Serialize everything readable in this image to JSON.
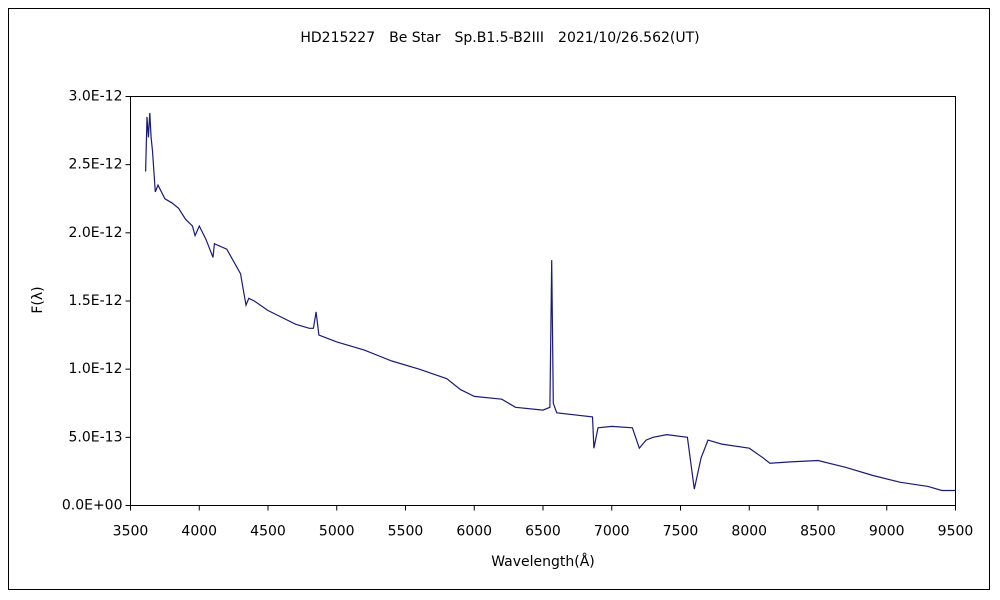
{
  "chart_data": {
    "type": "line",
    "title": "HD215227　Be Star　Sp.B1.5-B2III　2021/10/26.562(UT)",
    "xlabel": "Wavelength(Å)",
    "ylabel": "F(λ)",
    "color": "#1a1a78",
    "x": [
      3610,
      3620,
      3630,
      3640,
      3650,
      3660,
      3680,
      3700,
      3750,
      3800,
      3850,
      3900,
      3950,
      3970,
      4000,
      4050,
      4100,
      4110,
      4200,
      4300,
      4340,
      4360,
      4400,
      4500,
      4600,
      4700,
      4800,
      4830,
      4850,
      4870,
      5000,
      5200,
      5400,
      5600,
      5800,
      5900,
      6000,
      6200,
      6300,
      6500,
      6550,
      6563,
      6575,
      6600,
      6860,
      6870,
      6900,
      7000,
      7150,
      7200,
      7250,
      7300,
      7400,
      7550,
      7600,
      7650,
      7700,
      7800,
      8000,
      8100,
      8150,
      8300,
      8500,
      8700,
      8900,
      9100,
      9300,
      9400,
      9500
    ],
    "values": [
      2.45e-12,
      2.85e-12,
      2.7e-12,
      2.88e-12,
      2.7e-12,
      2.6e-12,
      2.3e-12,
      2.35e-12,
      2.25e-12,
      2.22e-12,
      2.18e-12,
      2.1e-12,
      2.05e-12,
      1.98e-12,
      2.05e-12,
      1.95e-12,
      1.82e-12,
      1.92e-12,
      1.88e-12,
      1.7e-12,
      1.47e-12,
      1.52e-12,
      1.5e-12,
      1.43e-12,
      1.38e-12,
      1.33e-12,
      1.3e-12,
      1.3e-12,
      1.42e-12,
      1.25e-12,
      1.2e-12,
      1.14e-12,
      1.06e-12,
      1e-12,
      9.3e-13,
      8.5e-13,
      8e-13,
      7.8e-13,
      7.2e-13,
      7e-13,
      7.2e-13,
      1.8e-12,
      7.5e-13,
      6.8e-13,
      6.5e-13,
      4.2e-13,
      5.7e-13,
      5.8e-13,
      5.7e-13,
      4.2e-13,
      4.8e-13,
      5e-13,
      5.2e-13,
      5e-13,
      1.2e-13,
      3.5e-13,
      4.8e-13,
      4.5e-13,
      4.2e-13,
      3.5e-13,
      3.1e-13,
      3.2e-13,
      3.3e-13,
      2.8e-13,
      2.2e-13,
      1.7e-13,
      1.4e-13,
      1.1e-13,
      1.1e-13
    ],
    "xlim": [
      3500,
      9500
    ],
    "xticks": [
      3500,
      4000,
      4500,
      5000,
      5500,
      6000,
      6500,
      7000,
      7500,
      8000,
      8500,
      9000,
      9500
    ],
    "ylim": [
      0,
      3e-12
    ],
    "yticks": [
      {
        "value": 0,
        "label": "0.0E+00"
      },
      {
        "value": 5e-13,
        "label": "5.0E-13"
      },
      {
        "value": 1e-12,
        "label": "1.0E-12"
      },
      {
        "value": 1.5e-12,
        "label": "1.5E-12"
      },
      {
        "value": 2e-12,
        "label": "2.0E-12"
      },
      {
        "value": 2.5e-12,
        "label": "2.5E-12"
      },
      {
        "value": 3e-12,
        "label": "3.0E-12"
      }
    ],
    "grid": false
  }
}
